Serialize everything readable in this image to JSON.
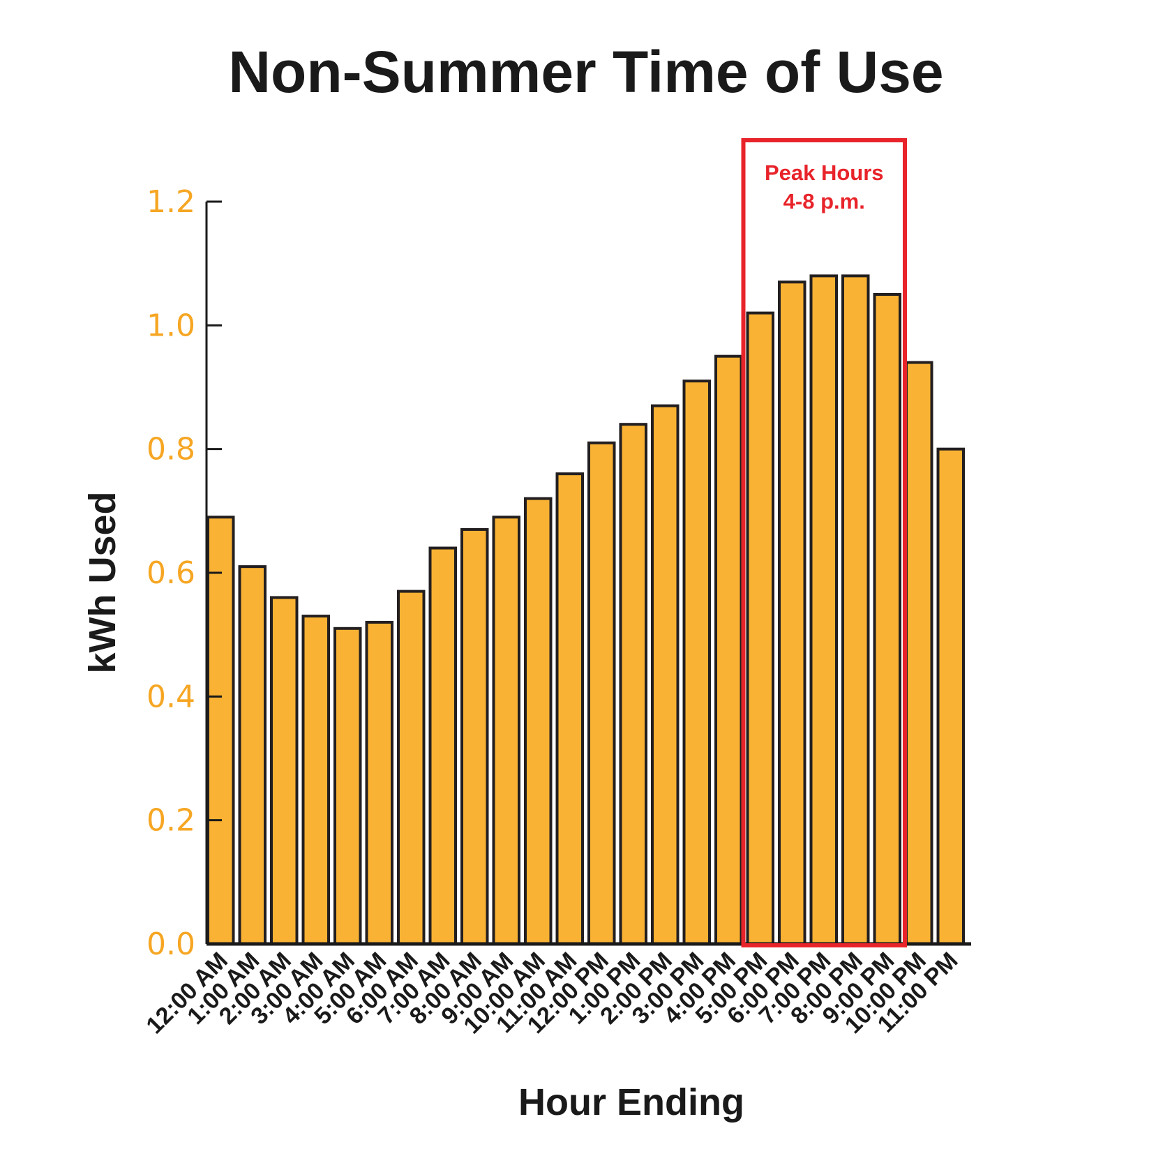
{
  "chart_data": {
    "type": "bar",
    "title": "Non-Summer Time of Use",
    "xlabel": "Hour Ending",
    "ylabel": "kWh Used",
    "ylim": [
      0,
      1.2
    ],
    "yticks": [
      "0.0",
      "0.2",
      "0.4",
      "0.6",
      "0.8",
      "1.0",
      "1.2"
    ],
    "grid": false,
    "categories": [
      "12:00 AM",
      "1:00 AM",
      "2:00 AM",
      "3:00 AM",
      "4:00 AM",
      "5:00 AM",
      "6:00 AM",
      "7:00 AM",
      "8:00 AM",
      "9:00 AM",
      "10:00 AM",
      "11:00 AM",
      "12:00 PM",
      "1:00 PM",
      "2:00 PM",
      "3:00 PM",
      "4:00 PM",
      "5:00 PM",
      "6:00 PM",
      "7:00 PM",
      "8:00 PM",
      "9:00 PM",
      "10:00 PM",
      "11:00 PM"
    ],
    "values": [
      0.69,
      0.61,
      0.56,
      0.53,
      0.51,
      0.52,
      0.57,
      0.64,
      0.67,
      0.69,
      0.72,
      0.76,
      0.81,
      0.84,
      0.87,
      0.91,
      0.95,
      1.02,
      1.07,
      1.08,
      1.08,
      1.05,
      0.94,
      0.8
    ],
    "annotation": {
      "lines": [
        "Peak Hours",
        "4-8 p.m."
      ],
      "highlight_categories": [
        "5:00 PM",
        "6:00 PM",
        "7:00 PM",
        "8:00 PM",
        "9:00 PM"
      ]
    },
    "colors": {
      "bar_fill": "#F9B233",
      "bar_stroke": "#231F20",
      "tick_label": "#F6A623",
      "highlight": "#E8232A",
      "text": "#1A1A1A"
    }
  }
}
